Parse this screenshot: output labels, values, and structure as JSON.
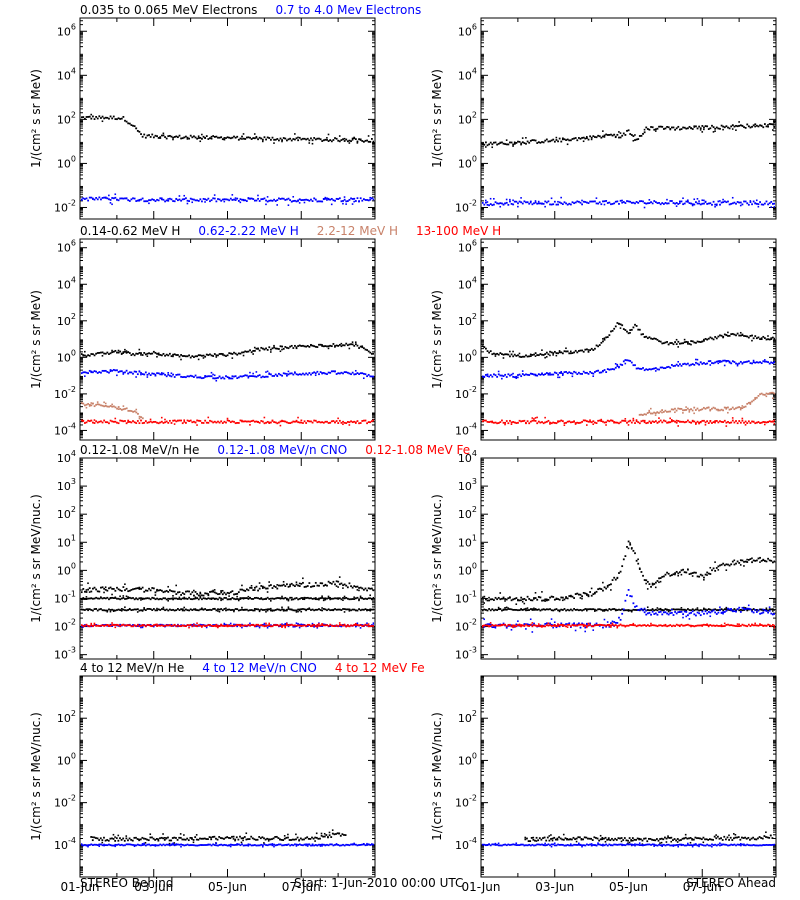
{
  "footer": {
    "left": "STEREO Behind",
    "center": "Start:  1-Jun-2010 00:00 UTC",
    "right": "STEREO Ahead"
  },
  "x_ticks": [
    "01-Jun",
    "03-Jun",
    "05-Jun",
    "07-Jun"
  ],
  "chart_data": [
    {
      "type": "scatter",
      "row": 0,
      "column": "STEREO Behind",
      "title_parts": [
        {
          "text": "0.035 to 0.065 MeV Electrons",
          "color": "#000000"
        },
        {
          "text": "0.7 to 4.0 Mev Electrons",
          "color": "#0000ff"
        }
      ],
      "ylabel": "1/(cm² s sr MeV)",
      "yscale": "log",
      "ylim": [
        0.003,
        4000000
      ],
      "yticks": [
        {
          "v": 0.01,
          "e": "-2"
        },
        {
          "v": 1,
          "e": "0"
        },
        {
          "v": 100,
          "e": "2"
        },
        {
          "v": 10000,
          "e": "4"
        },
        {
          "v": 1000000,
          "e": "6"
        }
      ],
      "xlim": [
        0,
        8
      ],
      "series": [
        {
          "color": "#000000",
          "x": [
            0,
            1,
            1.2,
            1.4,
            1.7,
            2.5,
            3.5,
            4.5,
            5.5,
            6.5,
            7.5,
            8
          ],
          "values": [
            120,
            120,
            110,
            60,
            18,
            16,
            15,
            14,
            13,
            12,
            12,
            11
          ]
        },
        {
          "color": "#0000ff",
          "x": [
            0,
            1,
            2,
            3,
            4,
            5,
            6,
            7,
            8
          ],
          "values": [
            0.025,
            0.024,
            0.023,
            0.022,
            0.022,
            0.022,
            0.022,
            0.023,
            0.023
          ]
        }
      ]
    },
    {
      "type": "scatter",
      "row": 0,
      "column": "STEREO Ahead",
      "title_parts": [],
      "ylabel": "1/(cm² s sr MeV)",
      "yscale": "log",
      "ylim": [
        0.003,
        4000000
      ],
      "yticks": [
        {
          "v": 0.01,
          "e": "-2"
        },
        {
          "v": 1,
          "e": "0"
        },
        {
          "v": 100,
          "e": "2"
        },
        {
          "v": 10000,
          "e": "4"
        },
        {
          "v": 1000000,
          "e": "6"
        }
      ],
      "xlim": [
        0,
        8
      ],
      "series": [
        {
          "color": "#000000",
          "x": [
            0,
            0.5,
            1,
            1.5,
            2,
            2.5,
            3,
            3.5,
            3.8,
            4.0,
            4.2,
            4.5,
            4.8,
            5.2,
            5.8,
            6.5,
            7.2,
            8
          ],
          "values": [
            8,
            8,
            9,
            10,
            11,
            13,
            15,
            20,
            16,
            30,
            12,
            40,
            40,
            40,
            42,
            45,
            50,
            55
          ]
        },
        {
          "color": "#0000ff",
          "x": [
            0,
            1,
            2,
            3,
            4,
            5,
            6,
            7,
            8
          ],
          "values": [
            0.015,
            0.016,
            0.016,
            0.017,
            0.017,
            0.017,
            0.016,
            0.016,
            0.016
          ]
        }
      ]
    },
    {
      "type": "scatter",
      "row": 1,
      "column": "STEREO Behind",
      "title_parts": [
        {
          "text": "0.14-0.62 MeV H",
          "color": "#000000"
        },
        {
          "text": "0.62-2.22 MeV H",
          "color": "#0000ff"
        },
        {
          "text": "2.2-12 MeV H",
          "color": "#c8826a"
        },
        {
          "text": "13-100 MeV H",
          "color": "#ff0000"
        }
      ],
      "ylabel": "1/(cm² s sr MeV)",
      "yscale": "log",
      "ylim": [
        3e-05,
        3000000
      ],
      "yticks": [
        {
          "v": 0.0001,
          "e": "-4"
        },
        {
          "v": 0.01,
          "e": "-2"
        },
        {
          "v": 1,
          "e": "0"
        },
        {
          "v": 100,
          "e": "2"
        },
        {
          "v": 10000,
          "e": "4"
        },
        {
          "v": 1000000,
          "e": "6"
        }
      ],
      "xlim": [
        0,
        8
      ],
      "series": [
        {
          "color": "#000000",
          "x": [
            0,
            0.5,
            1,
            1.5,
            2,
            2.5,
            3,
            3.5,
            4,
            4.5,
            5,
            5.5,
            6,
            6.5,
            7,
            7.5,
            8
          ],
          "values": [
            1.3,
            1.5,
            2,
            1.5,
            1.8,
            1.3,
            1.1,
            1.3,
            1.4,
            2,
            3,
            3.5,
            4,
            4.5,
            5,
            4.5,
            1.5
          ]
        },
        {
          "color": "#0000ff",
          "x": [
            0,
            1,
            2,
            3,
            4,
            5,
            6,
            7,
            8
          ],
          "values": [
            0.15,
            0.18,
            0.12,
            0.09,
            0.08,
            0.1,
            0.13,
            0.15,
            0.1
          ]
        },
        {
          "color": "#c8826a",
          "x": [
            0,
            0.4,
            0.8,
            1.2,
            1.5,
            1.7
          ],
          "values": [
            0.003,
            0.0025,
            0.002,
            0.0015,
            0.001,
            0.0004
          ]
        },
        {
          "color": "#ff0000",
          "x": [
            0,
            1,
            2,
            3,
            4,
            5,
            6,
            7,
            8
          ],
          "values": [
            0.0003,
            0.0003,
            0.0003,
            0.0003,
            0.0003,
            0.0003,
            0.0003,
            0.0003,
            0.0003
          ]
        }
      ]
    },
    {
      "type": "scatter",
      "row": 1,
      "column": "STEREO Ahead",
      "title_parts": [],
      "ylabel": "1/(cm² s sr MeV)",
      "yscale": "log",
      "ylim": [
        3e-05,
        3000000
      ],
      "yticks": [
        {
          "v": 0.0001,
          "e": "-4"
        },
        {
          "v": 0.01,
          "e": "-2"
        },
        {
          "v": 1,
          "e": "0"
        },
        {
          "v": 100,
          "e": "2"
        },
        {
          "v": 10000,
          "e": "4"
        },
        {
          "v": 1000000,
          "e": "6"
        }
      ],
      "xlim": [
        0,
        8
      ],
      "series": [
        {
          "color": "#000000",
          "x": [
            0,
            0.2,
            0.5,
            1,
            1.5,
            2,
            2.5,
            3,
            3.2,
            3.5,
            3.7,
            4.0,
            4.2,
            4.4,
            4.7,
            5,
            5.5,
            6,
            6.5,
            7,
            7.5,
            8
          ],
          "values": [
            5,
            2,
            1.5,
            1.2,
            1.5,
            1.8,
            2,
            2.5,
            5,
            20,
            80,
            25,
            60,
            15,
            10,
            6,
            6,
            8,
            15,
            18,
            12,
            10
          ]
        },
        {
          "color": "#0000ff",
          "x": [
            0,
            1,
            2,
            3,
            3.5,
            3.7,
            4.0,
            4.2,
            4.5,
            5,
            5.5,
            6,
            6.5,
            7,
            7.5,
            8
          ],
          "values": [
            0.1,
            0.1,
            0.13,
            0.15,
            0.2,
            0.3,
            0.8,
            0.3,
            0.2,
            0.3,
            0.4,
            0.5,
            0.6,
            0.5,
            0.6,
            0.5
          ]
        },
        {
          "color": "#c8826a",
          "x": [
            4.3,
            5,
            5.5,
            6,
            6.5,
            7,
            7.3,
            7.6,
            8
          ],
          "values": [
            0.0008,
            0.0012,
            0.0015,
            0.0015,
            0.0015,
            0.0017,
            0.003,
            0.01,
            0.01
          ]
        },
        {
          "color": "#ff0000",
          "x": [
            0,
            1,
            2,
            3,
            4,
            5,
            6,
            7,
            8
          ],
          "values": [
            0.0003,
            0.0003,
            0.0003,
            0.0003,
            0.0003,
            0.0003,
            0.0003,
            0.0003,
            0.0003
          ]
        }
      ]
    },
    {
      "type": "scatter",
      "row": 2,
      "column": "STEREO Behind",
      "title_parts": [
        {
          "text": "0.12-1.08 MeV/n He",
          "color": "#000000"
        },
        {
          "text": "0.12-1.08 MeV/n CNO",
          "color": "#0000ff"
        },
        {
          "text": "0.12-1.08 MeV Fe",
          "color": "#ff0000"
        }
      ],
      "ylabel": "1/(cm² s sr MeV/nuc.)",
      "yscale": "log",
      "ylim": [
        0.0007,
        10000
      ],
      "yticks": [
        {
          "v": 0.001,
          "e": "-3"
        },
        {
          "v": 0.01,
          "e": "-2"
        },
        {
          "v": 0.1,
          "e": "-1"
        },
        {
          "v": 1,
          "e": "0"
        },
        {
          "v": 10,
          "e": "1"
        },
        {
          "v": 100,
          "e": "2"
        },
        {
          "v": 1000,
          "e": "3"
        },
        {
          "v": 10000,
          "e": "4"
        }
      ],
      "xlim": [
        0,
        8
      ],
      "series": [
        {
          "color": "#000000",
          "x": [
            0,
            1,
            2,
            3,
            4,
            5,
            6,
            7,
            8
          ],
          "values": [
            0.2,
            0.22,
            0.2,
            0.15,
            0.15,
            0.25,
            0.3,
            0.35,
            0.2
          ]
        },
        {
          "color": "#000000",
          "x": [
            0,
            8
          ],
          "values": [
            0.1,
            0.1
          ]
        },
        {
          "color": "#000000",
          "x": [
            0,
            8
          ],
          "values": [
            0.04,
            0.04
          ]
        },
        {
          "color": "#0000ff",
          "x": [
            0,
            8
          ],
          "values": [
            0.011,
            0.011
          ]
        },
        {
          "color": "#ff0000",
          "x": [
            0,
            8
          ],
          "values": [
            0.011,
            0.011
          ]
        }
      ]
    },
    {
      "type": "scatter",
      "row": 2,
      "column": "STEREO Ahead",
      "title_parts": [],
      "ylabel": "1/(cm² s sr MeV/nuc.)",
      "yscale": "log",
      "ylim": [
        0.0007,
        10000
      ],
      "yticks": [
        {
          "v": 0.001,
          "e": "-3"
        },
        {
          "v": 0.01,
          "e": "-2"
        },
        {
          "v": 0.1,
          "e": "-1"
        },
        {
          "v": 1,
          "e": "0"
        },
        {
          "v": 10,
          "e": "1"
        },
        {
          "v": 100,
          "e": "2"
        },
        {
          "v": 1000,
          "e": "3"
        },
        {
          "v": 10000,
          "e": "4"
        }
      ],
      "xlim": [
        0,
        8
      ],
      "series": [
        {
          "color": "#000000",
          "x": [
            0,
            1,
            2,
            3,
            3.5,
            3.8,
            4.0,
            4.2,
            4.4,
            4.6,
            5,
            5.5,
            6,
            6.5,
            7,
            7.5,
            8
          ],
          "values": [
            0.1,
            0.1,
            0.1,
            0.15,
            0.3,
            1,
            10,
            3,
            0.5,
            0.3,
            0.7,
            1,
            0.6,
            1.5,
            2,
            2.5,
            2
          ]
        },
        {
          "color": "#000000",
          "x": [
            0,
            8
          ],
          "values": [
            0.04,
            0.04
          ]
        },
        {
          "color": "#0000ff",
          "x": [
            0,
            3.5,
            3.8,
            4.0,
            4.2,
            4.5,
            5,
            6,
            7,
            8
          ],
          "values": [
            0.011,
            0.011,
            0.02,
            0.2,
            0.05,
            0.03,
            0.03,
            0.03,
            0.04,
            0.03
          ]
        },
        {
          "color": "#ff0000",
          "x": [
            0,
            8
          ],
          "values": [
            0.011,
            0.011
          ]
        }
      ]
    },
    {
      "type": "scatter",
      "row": 3,
      "column": "STEREO Behind",
      "title_parts": [
        {
          "text": "4 to 12 MeV/n He",
          "color": "#000000"
        },
        {
          "text": "4 to 12 MeV/n CNO",
          "color": "#0000ff"
        },
        {
          "text": "4 to 12 MeV Fe",
          "color": "#ff0000"
        }
      ],
      "ylabel": "1/(cm² s sr MeV/nuc.)",
      "yscale": "log",
      "ylim": [
        3e-06,
        10000
      ],
      "yticks": [
        {
          "v": 0.0001,
          "e": "-4"
        },
        {
          "v": 0.01,
          "e": "-2"
        },
        {
          "v": 1,
          "e": "0"
        },
        {
          "v": 100,
          "e": "2"
        }
      ],
      "xlim": [
        0,
        8
      ],
      "series": [
        {
          "color": "#000000",
          "x": [
            0.3,
            1.2,
            2.8,
            4.6,
            6.2,
            7.2
          ],
          "values": [
            0.0002,
            0.00018,
            0.0002,
            0.00021,
            0.0002,
            0.00035
          ]
        },
        {
          "color": "#0000ff",
          "x": [
            0,
            8
          ],
          "values": [
            0.0001,
            0.0001
          ]
        }
      ]
    },
    {
      "type": "scatter",
      "row": 3,
      "column": "STEREO Ahead",
      "title_parts": [],
      "ylabel": "1/(cm² s sr MeV/nuc.)",
      "yscale": "log",
      "ylim": [
        3e-06,
        10000
      ],
      "yticks": [
        {
          "v": 0.0001,
          "e": "-4"
        },
        {
          "v": 0.01,
          "e": "-2"
        },
        {
          "v": 1,
          "e": "0"
        },
        {
          "v": 100,
          "e": "2"
        }
      ],
      "xlim": [
        0,
        8
      ],
      "series": [
        {
          "color": "#000000",
          "x": [
            1.2,
            2.4,
            4.6,
            6.0,
            7.4,
            7.9
          ],
          "values": [
            0.00018,
            0.0002,
            0.00018,
            0.00021,
            0.0002,
            0.00025
          ]
        },
        {
          "color": "#0000ff",
          "x": [
            0,
            8
          ],
          "values": [
            0.0001,
            0.0001
          ]
        }
      ]
    }
  ]
}
